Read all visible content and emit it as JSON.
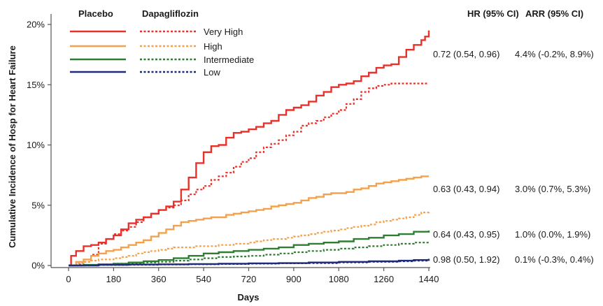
{
  "chart_data": {
    "type": "line",
    "xlabel": "Days",
    "ylabel": "Cumulative Incidence of Hosp for Heart Failure",
    "xlim": [
      0,
      1440
    ],
    "ylim": [
      0,
      21
    ],
    "x_ticks": [
      "0",
      "180",
      "360",
      "540",
      "720",
      "900",
      "1080",
      "1260",
      "1440"
    ],
    "x_tick_values": [
      0,
      180,
      360,
      540,
      720,
      900,
      1080,
      1260,
      1440
    ],
    "y_ticks": [
      "0%",
      "5%",
      "10%",
      "15%",
      "20%"
    ],
    "y_tick_values": [
      0,
      5,
      10,
      15,
      20
    ],
    "legend": {
      "header_left": "Placebo",
      "header_right": "Dapagliflozin",
      "entries": [
        "Very High",
        "High",
        "Intermediate",
        "Low"
      ]
    },
    "colors": {
      "very_high": "#e8312a",
      "high": "#f5a04a",
      "intermediate": "#2e7d32",
      "low": "#1f2a7a"
    },
    "stat_headers": {
      "hr": "HR (95% CI)",
      "arr": "ARR (95% CI)"
    },
    "stats": [
      {
        "group": "Very High",
        "hr": "0.72 (0.54, 0.96)",
        "arr": "4.4% (-0.2%, 8.9%)"
      },
      {
        "group": "High",
        "hr": "0.63 (0.43, 0.94)",
        "arr": "3.0% (0.7%, 5.3%)"
      },
      {
        "group": "Intermediate",
        "hr": "0.64 (0.43, 0.95)",
        "arr": "1.0% (0.0%, 1.9%)"
      },
      {
        "group": "Low",
        "hr": "0.98 (0.50, 1.92)",
        "arr": "0.1% (-0.3%, 0.4%)"
      }
    ],
    "series": [
      {
        "name": "Very High",
        "arm": "Placebo",
        "color": "#e8312a",
        "dash": false,
        "x": [
          0,
          10,
          30,
          60,
          90,
          120,
          150,
          180,
          210,
          240,
          270,
          300,
          330,
          360,
          390,
          420,
          450,
          480,
          510,
          540,
          570,
          600,
          630,
          660,
          690,
          720,
          750,
          780,
          810,
          840,
          870,
          900,
          930,
          960,
          990,
          1020,
          1050,
          1080,
          1110,
          1140,
          1170,
          1200,
          1230,
          1260,
          1290,
          1320,
          1350,
          1380,
          1410,
          1425,
          1440
        ],
        "y": [
          0,
          0.8,
          1.2,
          1.6,
          1.7,
          1.9,
          2.2,
          2.5,
          3.0,
          3.5,
          3.8,
          4.0,
          4.3,
          4.6,
          4.9,
          5.3,
          6.3,
          7.3,
          8.5,
          9.4,
          9.9,
          10.0,
          10.6,
          11.0,
          11.1,
          11.3,
          11.5,
          11.8,
          12.0,
          12.5,
          12.9,
          13.1,
          13.3,
          13.6,
          14.1,
          14.4,
          14.8,
          15.0,
          15.1,
          15.3,
          15.7,
          16.0,
          16.4,
          16.6,
          16.7,
          17.3,
          17.9,
          18.3,
          18.7,
          19.0,
          19.5
        ]
      },
      {
        "name": "Very High",
        "arm": "Dapagliflozin",
        "color": "#e8312a",
        "dash": true,
        "x": [
          0,
          30,
          60,
          90,
          120,
          150,
          180,
          210,
          240,
          270,
          300,
          330,
          360,
          390,
          420,
          450,
          480,
          510,
          540,
          570,
          600,
          630,
          660,
          690,
          720,
          750,
          780,
          810,
          840,
          870,
          900,
          930,
          960,
          990,
          1020,
          1050,
          1080,
          1110,
          1140,
          1170,
          1200,
          1230,
          1260,
          1290,
          1320,
          1350,
          1380,
          1410,
          1440
        ],
        "y": [
          0,
          0.1,
          0.3,
          0.9,
          1.8,
          2.2,
          2.6,
          2.9,
          3.2,
          3.6,
          4.0,
          4.3,
          4.6,
          4.8,
          5.0,
          5.4,
          5.9,
          6.3,
          6.6,
          7.1,
          7.4,
          7.7,
          8.2,
          8.6,
          8.9,
          9.4,
          9.8,
          10.1,
          10.4,
          10.8,
          11.1,
          11.6,
          11.8,
          12.0,
          12.3,
          12.6,
          12.9,
          13.4,
          13.8,
          14.4,
          14.7,
          14.9,
          15.0,
          15.1,
          15.1,
          15.1,
          15.1,
          15.1,
          15.1
        ]
      },
      {
        "name": "High",
        "arm": "Placebo",
        "color": "#f5a04a",
        "dash": false,
        "x": [
          0,
          30,
          60,
          90,
          120,
          150,
          180,
          210,
          240,
          270,
          300,
          330,
          360,
          390,
          420,
          450,
          480,
          510,
          540,
          570,
          600,
          630,
          660,
          690,
          720,
          750,
          780,
          810,
          840,
          870,
          900,
          930,
          960,
          990,
          1020,
          1050,
          1080,
          1110,
          1140,
          1170,
          1200,
          1230,
          1260,
          1290,
          1320,
          1350,
          1380,
          1410,
          1440
        ],
        "y": [
          0,
          0.3,
          0.5,
          0.8,
          1.0,
          1.2,
          1.3,
          1.5,
          1.7,
          1.9,
          2.1,
          2.4,
          2.7,
          3.0,
          3.3,
          3.6,
          3.7,
          3.8,
          3.9,
          4.0,
          4.0,
          4.2,
          4.3,
          4.4,
          4.5,
          4.6,
          4.7,
          4.9,
          5.0,
          5.1,
          5.2,
          5.4,
          5.6,
          5.7,
          5.9,
          6.0,
          6.0,
          6.1,
          6.3,
          6.4,
          6.6,
          6.8,
          6.9,
          7.0,
          7.1,
          7.2,
          7.3,
          7.4,
          7.4
        ]
      },
      {
        "name": "High",
        "arm": "Dapagliflozin",
        "color": "#f5a04a",
        "dash": true,
        "x": [
          0,
          30,
          60,
          90,
          120,
          150,
          180,
          210,
          240,
          270,
          300,
          330,
          360,
          390,
          420,
          450,
          480,
          510,
          540,
          570,
          600,
          630,
          660,
          690,
          720,
          750,
          780,
          810,
          840,
          870,
          900,
          930,
          960,
          990,
          1020,
          1050,
          1080,
          1110,
          1140,
          1170,
          1200,
          1230,
          1260,
          1290,
          1320,
          1350,
          1380,
          1410,
          1440
        ],
        "y": [
          0,
          0.2,
          0.3,
          0.4,
          0.5,
          0.5,
          0.6,
          0.7,
          0.8,
          1.0,
          1.1,
          1.2,
          1.3,
          1.4,
          1.5,
          1.5,
          1.5,
          1.6,
          1.6,
          1.6,
          1.7,
          1.7,
          1.8,
          1.8,
          1.9,
          2.0,
          2.1,
          2.2,
          2.2,
          2.3,
          2.4,
          2.5,
          2.6,
          2.7,
          2.8,
          2.9,
          3.0,
          3.1,
          3.2,
          3.3,
          3.4,
          3.6,
          3.7,
          3.8,
          3.9,
          4.0,
          4.2,
          4.4,
          4.5
        ]
      },
      {
        "name": "Intermediate",
        "arm": "Placebo",
        "color": "#2e7d32",
        "dash": false,
        "x": [
          0,
          60,
          120,
          180,
          240,
          300,
          360,
          420,
          480,
          540,
          600,
          660,
          720,
          780,
          840,
          900,
          960,
          1020,
          1080,
          1140,
          1200,
          1260,
          1320,
          1380,
          1440
        ],
        "y": [
          0,
          0.05,
          0.1,
          0.15,
          0.25,
          0.35,
          0.45,
          0.6,
          0.8,
          1.0,
          1.1,
          1.2,
          1.3,
          1.4,
          1.5,
          1.7,
          1.8,
          1.9,
          2.0,
          2.2,
          2.3,
          2.5,
          2.6,
          2.8,
          2.9
        ]
      },
      {
        "name": "Intermediate",
        "arm": "Dapagliflozin",
        "color": "#2e7d32",
        "dash": true,
        "x": [
          0,
          60,
          120,
          180,
          240,
          300,
          360,
          420,
          480,
          540,
          600,
          660,
          720,
          780,
          840,
          900,
          960,
          1020,
          1080,
          1140,
          1200,
          1260,
          1320,
          1380,
          1440
        ],
        "y": [
          0,
          0.05,
          0.1,
          0.15,
          0.2,
          0.25,
          0.3,
          0.4,
          0.5,
          0.6,
          0.7,
          0.75,
          0.8,
          0.9,
          1.0,
          1.1,
          1.2,
          1.3,
          1.4,
          1.5,
          1.6,
          1.7,
          1.8,
          1.9,
          2.0
        ]
      },
      {
        "name": "Low",
        "arm": "Placebo",
        "color": "#1f2a7a",
        "dash": false,
        "x": [
          0,
          120,
          240,
          360,
          480,
          600,
          720,
          840,
          960,
          1080,
          1200,
          1320,
          1380,
          1440
        ],
        "y": [
          0,
          0.05,
          0.08,
          0.1,
          0.12,
          0.15,
          0.18,
          0.2,
          0.25,
          0.3,
          0.35,
          0.4,
          0.45,
          0.55
        ]
      },
      {
        "name": "Low",
        "arm": "Dapagliflozin",
        "color": "#1f2a7a",
        "dash": true,
        "x": [
          0,
          120,
          240,
          360,
          480,
          600,
          720,
          840,
          960,
          1080,
          1200,
          1320,
          1380,
          1440
        ],
        "y": [
          0,
          0.04,
          0.06,
          0.08,
          0.1,
          0.12,
          0.15,
          0.18,
          0.2,
          0.25,
          0.3,
          0.35,
          0.4,
          0.45
        ]
      }
    ]
  }
}
